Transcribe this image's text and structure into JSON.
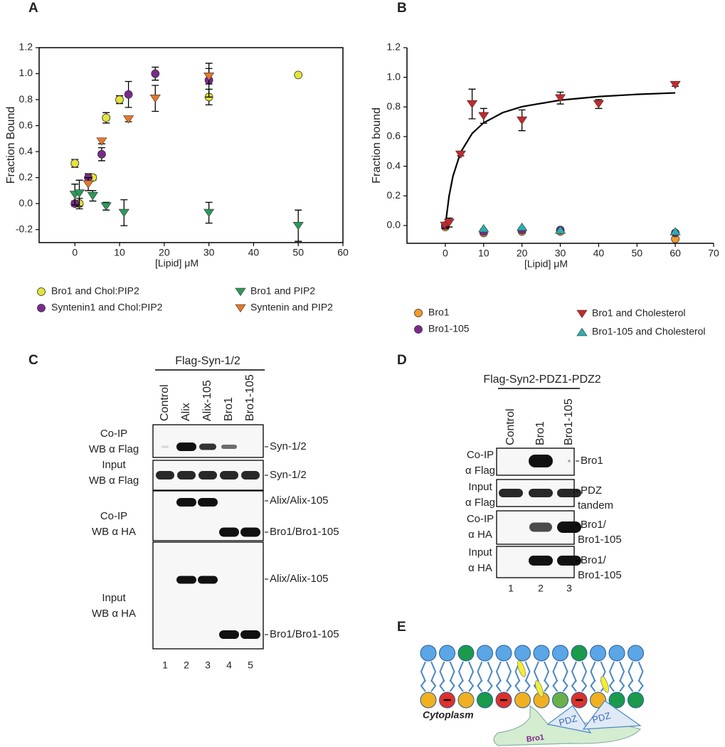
{
  "panel_labels": [
    "A",
    "B",
    "C",
    "D",
    "E"
  ],
  "chart_data": [
    {
      "type": "scatter",
      "xlabel": "[Lipid] μM",
      "ylabel": "Fraction Bound",
      "xlim": [
        -8,
        60
      ],
      "ylim": [
        -0.3,
        1.2
      ],
      "xticks": [
        0,
        10,
        20,
        30,
        40,
        50,
        60
      ],
      "yticks": [
        -0.2,
        {
          "value": 0,
          "label": "0.0"
        },
        0.2,
        0.4,
        0.6,
        0.8,
        {
          "value": 1,
          "label": "1.0"
        },
        1.2
      ],
      "box": true,
      "series": [
        {
          "name": "Bro1 and Chol:PIP2",
          "color": "#e4e43a",
          "marker": "circle",
          "x": [
            0,
            1,
            4,
            7,
            10,
            30,
            50
          ],
          "values": [
            0.31,
            0.0,
            0.2,
            0.66,
            0.8,
            0.82,
            0.99
          ],
          "errors": [
            0.03,
            0.04,
            0.02,
            0.04,
            0.03,
            0.06,
            0.01
          ]
        },
        {
          "name": "Syntenin1 and Chol:PIP2",
          "color": "#7b2a8c",
          "marker": "circle",
          "x": [
            0,
            3,
            6,
            12,
            18,
            30
          ],
          "values": [
            0.0,
            0.2,
            0.38,
            0.84,
            1.0,
            0.95
          ],
          "errors": [
            0.02,
            0.03,
            0.05,
            0.1,
            0.05,
            0.13
          ]
        },
        {
          "name": "Bro1 and PIP2",
          "color": "#2a9a5a",
          "marker": "triangle-down",
          "x": [
            0,
            1,
            4,
            7,
            11,
            30,
            50
          ],
          "values": [
            0.07,
            0.08,
            0.06,
            -0.02,
            -0.07,
            -0.07,
            -0.17
          ],
          "errors": [
            0.08,
            0.1,
            0.04,
            0.03,
            0.1,
            0.08,
            0.12
          ]
        },
        {
          "name": "Syntenin and PIP2",
          "color": "#e8772a",
          "marker": "triangle-down",
          "x": [
            3,
            6,
            12,
            18,
            30
          ],
          "values": [
            0.15,
            0.48,
            0.65,
            0.81,
            0.98
          ],
          "errors": [
            0.05,
            0.02,
            0.02,
            0.1,
            0.06
          ]
        }
      ]
    },
    {
      "type": "scatter",
      "xlabel": "[Lipid] μM",
      "ylabel": "Fraction bound",
      "xlim": [
        -10,
        70
      ],
      "ylim": [
        -0.12,
        1.2
      ],
      "xticks": [
        0,
        10,
        20,
        30,
        40,
        50,
        60,
        70
      ],
      "yticks": [
        {
          "value": 0,
          "label": "0.0"
        },
        0.2,
        0.4,
        0.6,
        0.8,
        {
          "value": 1,
          "label": "1.0"
        },
        1.2
      ],
      "box": false,
      "series": [
        {
          "name": "Bro1",
          "color": "#f39a2a",
          "marker": "circle",
          "x": [
            0,
            10,
            20,
            30,
            60
          ],
          "values": [
            -0.01,
            -0.05,
            -0.04,
            -0.04,
            -0.09
          ]
        },
        {
          "name": "Bro1-105",
          "color": "#7b2a8c",
          "marker": "circle",
          "x": [
            0,
            10,
            20,
            30,
            60
          ],
          "values": [
            0.0,
            -0.04,
            -0.03,
            -0.03,
            -0.05
          ]
        },
        {
          "name": "Bro1 and Cholesterol",
          "color": "#c8282a",
          "marker": "triangle-down",
          "x": [
            0,
            1,
            4,
            7,
            10,
            20,
            30,
            40,
            60
          ],
          "values": [
            0.0,
            0.02,
            0.48,
            0.82,
            0.74,
            0.71,
            0.86,
            0.82,
            0.95
          ],
          "errors": [
            0.02,
            0.03,
            0.01,
            0.1,
            0.05,
            0.07,
            0.04,
            0.03,
            0.01
          ]
        },
        {
          "name": "Bro1-105 and Cholesterol",
          "color": "#2ab0b0",
          "marker": "triangle-up",
          "x": [
            10,
            20,
            30,
            60
          ],
          "values": [
            -0.02,
            -0.01,
            -0.03,
            -0.04
          ]
        }
      ],
      "fit": {
        "color": "#000000",
        "x": [
          0,
          1,
          2,
          4,
          7,
          10,
          15,
          20,
          30,
          40,
          50,
          60
        ],
        "values": [
          0,
          0.201,
          0.333,
          0.494,
          0.621,
          0.693,
          0.762,
          0.802,
          0.846,
          0.87,
          0.885,
          0.895
        ]
      }
    }
  ],
  "blot_c": {
    "header": "Flag-Syn-1/2",
    "lanes": [
      "Control",
      "Alix",
      "Alix-105",
      "Bro1",
      "Bro1-105"
    ],
    "lane_numbers": [
      "1",
      "2",
      "3",
      "4",
      "5"
    ],
    "left_labels": [
      [
        "Co-IP",
        "WB α Flag"
      ],
      [
        "Input",
        "WB α Flag"
      ],
      [
        "Co-IP",
        "WB α HA"
      ],
      [
        "Input",
        "WB α HA"
      ]
    ],
    "right_labels": [
      "Syn-1/2",
      "Syn-1/2",
      "Alix/Alix-105",
      "Bro1/Bro1-105",
      "Alix/Alix-105",
      "Bro1/Bro1-105"
    ]
  },
  "blot_d": {
    "header": "Flag-Syn2-PDZ1-PDZ2",
    "lanes": [
      "Control",
      "Bro1",
      "Bro1-105"
    ],
    "lane_numbers": [
      "1",
      "2",
      "3"
    ],
    "left_labels": [
      [
        "Co-IP",
        "α Flag"
      ],
      [
        "Input",
        "α Flag"
      ],
      [
        "Co-IP",
        "α HA"
      ],
      [
        "Input",
        "α HA"
      ]
    ],
    "right_labels": [
      [
        "Bro1"
      ],
      [
        "PDZ",
        "tandem"
      ],
      [
        "Bro1/",
        "Bro1-105"
      ],
      [
        "Bro1/",
        "Bro1-105"
      ]
    ]
  },
  "diagram_e": {
    "region": "Cytoplasm",
    "protein": "Bro1",
    "domains": [
      "PDZ",
      "PDZ"
    ]
  }
}
